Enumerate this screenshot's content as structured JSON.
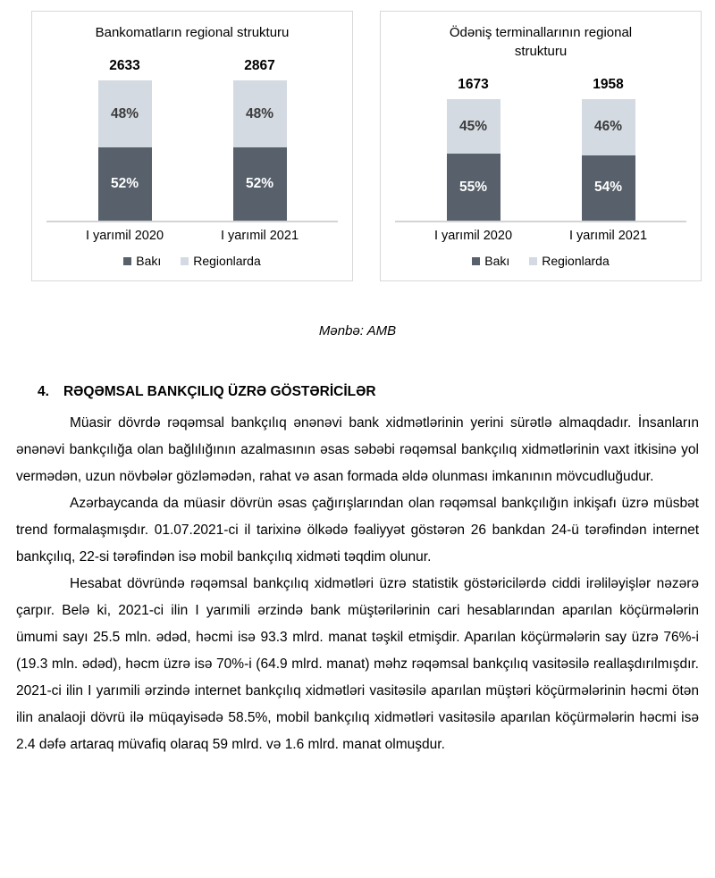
{
  "source_note": "Mənbə: AMB",
  "heading": {
    "number": "4.",
    "title": "RƏQƏMSAL BANKÇILIQ ÜZRƏ GÖSTƏRİCİLƏR"
  },
  "paragraphs": {
    "p1": "Müasir dövrdə rəqəmsal bankçılıq ənənəvi bank xidmətlərinin yerini sürətlə almaqdadır. İnsanların ənənəvi bankçılığa olan bağlılığının azalmasının əsas səbəbi rəqəmsal bankçılıq xidmətlərinin vaxt itkisinə yol vermədən, uzun növbələr gözləmədən, rahat və asan formada əldə olunması imkanının mövcudluğudur.",
    "p2": "Azərbaycanda da müasir dövrün əsas çağırışlarından olan rəqəmsal bankçılığın inkişafı üzrə müsbət trend formalaşmışdır. 01.07.2021-ci il tarixinə ölkədə fəaliyyət göstərən 26 bankdan 24-ü tərəfindən internet bankçılıq, 22-si tərəfindən isə mobil bankçılıq xidməti təqdim olunur.",
    "p3": "Hesabat dövründə rəqəmsal bankçılıq xidmətləri üzrə statistik göstəricilərdə ciddi irəliləyişlər nəzərə çarpır. Belə ki, 2021-ci ilin I yarımili ərzində bank müştərilərinin cari hesablarından aparılan köçürmələrin ümumi sayı 25.5 mln. ədəd, həcmi isə 93.3 mlrd. manat təşkil etmişdir. Aparılan köçürmələrin say üzrə 76%-i (19.3 mln. ədəd), həcm üzrə isə 70%-i (64.9 mlrd. manat) məhz rəqəmsal bankçılıq vasitəsilə reallaşdırılmışdır. 2021-ci ilin I yarımili ərzində internet bankçılıq xidmətləri vasitəsilə aparılan müştəri köçürmələrinin həcmi ötən ilin analaoji dövrü ilə müqayisədə 58.5%, mobil bankçılıq xidmətləri vasitəsilə aparılan köçürmələrin həcmi isə 2.4 dəfə artaraq müvafiq olaraq 59 mlrd. və 1.6 mlrd. manat olmuşdur."
  },
  "colors": {
    "baku_dark": "#57606b",
    "regions_light": "#d4dae2",
    "dark_segment_label": "#ffffff",
    "light_segment_label": "#3b3b3b",
    "chart_border": "#d8d8d8"
  },
  "chart_data": [
    {
      "type": "bar",
      "subtype": "stacked-100-percent-column",
      "title": "Bankomatların regional strukturu",
      "categories": [
        "I yarımil 2020",
        "I yarımil 2021"
      ],
      "totals": [
        "2633",
        "2867"
      ],
      "series": [
        {
          "name": "Bakı",
          "values": [
            52,
            52
          ],
          "unit": "%",
          "color": "#57606b",
          "label_color": "#ffffff"
        },
        {
          "name": "Regionlarda",
          "values": [
            48,
            48
          ],
          "unit": "%",
          "color": "#d4dae2",
          "label_color": "#3b3b3b"
        }
      ],
      "legend_position": "bottom",
      "grid": false,
      "ylim": [
        0,
        100
      ]
    },
    {
      "type": "bar",
      "subtype": "stacked-100-percent-column",
      "title": "Ödəniş terminallarının regional strukturu",
      "categories": [
        "I yarımil 2020",
        "I yarımil 2021"
      ],
      "totals": [
        "1673",
        "1958"
      ],
      "series": [
        {
          "name": "Bakı",
          "values": [
            55,
            54
          ],
          "unit": "%",
          "color": "#57606b",
          "label_color": "#ffffff"
        },
        {
          "name": "Regionlarda",
          "values": [
            45,
            46
          ],
          "unit": "%",
          "color": "#d4dae2",
          "label_color": "#3b3b3b"
        }
      ],
      "legend_position": "bottom",
      "grid": false,
      "ylim": [
        0,
        100
      ]
    }
  ]
}
